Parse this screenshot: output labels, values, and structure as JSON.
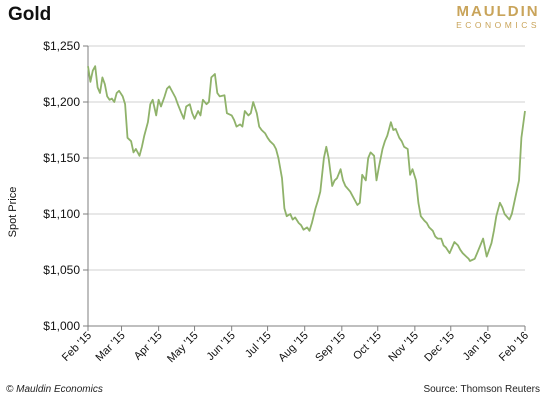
{
  "header": {
    "title": "Gold"
  },
  "logo": {
    "line1": "MAULDIN",
    "line2": "ECONOMICS"
  },
  "footer": {
    "copyright": "© Mauldin Economics",
    "source": "Source: Thomson  Reuters"
  },
  "colors": {
    "line": "#8fb26a",
    "axis": "#7f7f7f",
    "grid": "#d0d0d0",
    "logo": "#c9a45a"
  },
  "chart_data": {
    "type": "line",
    "title": "Gold",
    "xlabel": "",
    "ylabel": "Spot Price",
    "ylim": [
      1000,
      1250
    ],
    "yticks": [
      1000,
      1050,
      1100,
      1150,
      1200,
      1250
    ],
    "ytick_labels": [
      "$1,000",
      "$1,050",
      "$1,100",
      "$1,150",
      "$1,200",
      "$1,250"
    ],
    "xlim": [
      "2015-02-01",
      "2016-02-01"
    ],
    "xticks": [
      "2015-02-01",
      "2015-03-01",
      "2015-04-01",
      "2015-05-01",
      "2015-06-01",
      "2015-07-01",
      "2015-08-01",
      "2015-09-01",
      "2015-10-01",
      "2015-11-01",
      "2015-12-01",
      "2016-01-01",
      "2016-02-01"
    ],
    "xtick_labels": [
      "Feb '15",
      "Mar '15",
      "Apr '15",
      "May '15",
      "Jun '15",
      "Jul '15",
      "Aug '15",
      "Sep '15",
      "Oct '15",
      "Nov '15",
      "Dec '15",
      "Jan '16",
      "Feb '16"
    ],
    "grid": "horizontal",
    "series": [
      {
        "x": [
          "2015-02-01",
          "2015-02-03",
          "2015-02-05",
          "2015-02-07",
          "2015-02-09",
          "2015-02-11",
          "2015-02-13",
          "2015-02-15",
          "2015-02-17",
          "2015-02-19",
          "2015-02-21",
          "2015-02-23",
          "2015-02-25",
          "2015-02-27",
          "2015-03-02",
          "2015-03-04",
          "2015-03-06",
          "2015-03-09",
          "2015-03-11",
          "2015-03-13",
          "2015-03-16",
          "2015-03-18",
          "2015-03-20",
          "2015-03-23",
          "2015-03-25",
          "2015-03-27",
          "2015-03-30",
          "2015-04-01",
          "2015-04-03",
          "2015-04-06",
          "2015-04-08",
          "2015-04-10",
          "2015-04-13",
          "2015-04-15",
          "2015-04-17",
          "2015-04-20",
          "2015-04-22",
          "2015-04-24",
          "2015-04-27",
          "2015-04-29",
          "2015-05-01",
          "2015-05-04",
          "2015-05-06",
          "2015-05-08",
          "2015-05-11",
          "2015-05-13",
          "2015-05-15",
          "2015-05-18",
          "2015-05-20",
          "2015-05-22",
          "2015-05-26",
          "2015-05-28",
          "2015-06-01",
          "2015-06-03",
          "2015-06-05",
          "2015-06-08",
          "2015-06-10",
          "2015-06-12",
          "2015-06-15",
          "2015-06-17",
          "2015-06-19",
          "2015-06-22",
          "2015-06-24",
          "2015-06-26",
          "2015-06-29",
          "2015-07-01",
          "2015-07-03",
          "2015-07-06",
          "2015-07-08",
          "2015-07-10",
          "2015-07-13",
          "2015-07-15",
          "2015-07-17",
          "2015-07-20",
          "2015-07-22",
          "2015-07-24",
          "2015-07-27",
          "2015-07-29",
          "2015-07-31",
          "2015-08-03",
          "2015-08-05",
          "2015-08-07",
          "2015-08-10",
          "2015-08-12",
          "2015-08-14",
          "2015-08-17",
          "2015-08-19",
          "2015-08-21",
          "2015-08-24",
          "2015-08-26",
          "2015-08-28",
          "2015-08-31",
          "2015-09-02",
          "2015-09-04",
          "2015-09-08",
          "2015-09-10",
          "2015-09-14",
          "2015-09-16",
          "2015-09-18",
          "2015-09-21",
          "2015-09-23",
          "2015-09-25",
          "2015-09-28",
          "2015-09-30",
          "2015-10-02",
          "2015-10-05",
          "2015-10-07",
          "2015-10-09",
          "2015-10-12",
          "2015-10-14",
          "2015-10-16",
          "2015-10-19",
          "2015-10-21",
          "2015-10-23",
          "2015-10-26",
          "2015-10-28",
          "2015-10-30",
          "2015-11-02",
          "2015-11-04",
          "2015-11-06",
          "2015-11-09",
          "2015-11-11",
          "2015-11-13",
          "2015-11-16",
          "2015-11-18",
          "2015-11-20",
          "2015-11-23",
          "2015-11-25",
          "2015-11-27",
          "2015-11-30",
          "2015-12-02",
          "2015-12-04",
          "2015-12-07",
          "2015-12-09",
          "2015-12-11",
          "2015-12-14",
          "2015-12-16",
          "2015-12-17",
          "2015-12-21",
          "2015-12-23",
          "2015-12-28",
          "2015-12-31",
          "2016-01-04",
          "2016-01-06",
          "2016-01-08",
          "2016-01-11",
          "2016-01-13",
          "2016-01-15",
          "2016-01-19",
          "2016-01-21",
          "2016-01-25",
          "2016-01-27",
          "2016-01-29",
          "2016-02-01"
        ],
        "y": [
          1232,
          1218,
          1228,
          1232,
          1213,
          1208,
          1222,
          1216,
          1205,
          1202,
          1203,
          1200,
          1208,
          1210,
          1205,
          1198,
          1168,
          1165,
          1155,
          1158,
          1152,
          1160,
          1170,
          1182,
          1198,
          1202,
          1188,
          1202,
          1196,
          1205,
          1212,
          1214,
          1208,
          1204,
          1198,
          1190,
          1185,
          1196,
          1198,
          1190,
          1185,
          1192,
          1188,
          1202,
          1198,
          1200,
          1222,
          1225,
          1208,
          1205,
          1206,
          1190,
          1188,
          1184,
          1178,
          1180,
          1178,
          1192,
          1188,
          1190,
          1200,
          1190,
          1178,
          1175,
          1172,
          1168,
          1165,
          1162,
          1158,
          1150,
          1132,
          1105,
          1098,
          1100,
          1095,
          1097,
          1092,
          1090,
          1086,
          1088,
          1085,
          1092,
          1105,
          1112,
          1120,
          1150,
          1160,
          1150,
          1125,
          1130,
          1132,
          1140,
          1130,
          1125,
          1120,
          1116,
          1108,
          1110,
          1135,
          1130,
          1150,
          1155,
          1152,
          1130,
          1142,
          1158,
          1165,
          1170,
          1182,
          1175,
          1176,
          1168,
          1165,
          1160,
          1158,
          1135,
          1140,
          1130,
          1110,
          1098,
          1094,
          1092,
          1088,
          1085,
          1080,
          1078,
          1078,
          1072,
          1070,
          1065,
          1070,
          1075,
          1072,
          1068,
          1065,
          1062,
          1060,
          1058,
          1060,
          1065,
          1078,
          1062,
          1074,
          1085,
          1098,
          1110,
          1106,
          1100,
          1095,
          1100,
          1120,
          1130,
          1168,
          1192
        ]
      }
    ]
  }
}
